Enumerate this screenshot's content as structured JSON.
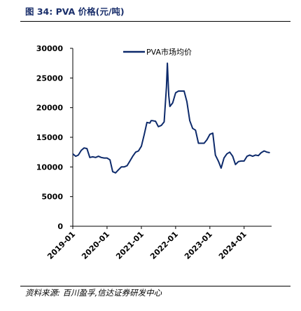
{
  "figure": {
    "title": "图 34:  PVA 价格(元/吨)",
    "source": "资料来源:  百川盈孚,信达证券研发中心"
  },
  "chart_data": {
    "type": "line",
    "title": "",
    "xlabel": "",
    "ylabel": "",
    "ylim": [
      0,
      30000
    ],
    "yticks": [
      0,
      5000,
      10000,
      15000,
      20000,
      25000,
      30000
    ],
    "xticks": [
      "2019-01",
      "2020-01",
      "2021-01",
      "2022-01",
      "2023-01",
      "2024-01"
    ],
    "legend_position": "top-center",
    "grid": false,
    "colors": {
      "line": "#0d2a6b",
      "axis": "#000000"
    },
    "series": [
      {
        "name": "PVA市场均价",
        "x": [
          "2019-01-01",
          "2019-02-01",
          "2019-03-01",
          "2019-04-01",
          "2019-05-01",
          "2019-06-01",
          "2019-07-01",
          "2019-08-01",
          "2019-09-01",
          "2019-10-01",
          "2019-11-01",
          "2019-12-01",
          "2020-01-01",
          "2020-02-01",
          "2020-03-01",
          "2020-04-01",
          "2020-05-01",
          "2020-06-01",
          "2020-07-01",
          "2020-08-01",
          "2020-09-01",
          "2020-10-01",
          "2020-11-01",
          "2020-12-01",
          "2021-01-01",
          "2021-02-01",
          "2021-03-01",
          "2021-04-01",
          "2021-04-15",
          "2021-05-01",
          "2021-06-01",
          "2021-07-01",
          "2021-08-01",
          "2021-09-01",
          "2021-09-25",
          "2021-10-05",
          "2021-10-20",
          "2021-11-01",
          "2021-12-01",
          "2022-01-01",
          "2022-02-01",
          "2022-03-01",
          "2022-04-01",
          "2022-05-01",
          "2022-06-01",
          "2022-07-01",
          "2022-08-01",
          "2022-09-01",
          "2022-10-01",
          "2022-11-01",
          "2022-12-01",
          "2023-01-01",
          "2023-02-01",
          "2023-03-01",
          "2023-04-01",
          "2023-05-01",
          "2023-06-01",
          "2023-07-01",
          "2023-08-01",
          "2023-09-01",
          "2023-10-01",
          "2023-11-01",
          "2023-12-01",
          "2024-01-01",
          "2024-02-01",
          "2024-03-01",
          "2024-04-01",
          "2024-05-01",
          "2024-06-01",
          "2024-07-01",
          "2024-08-01",
          "2024-09-01",
          "2024-10-01"
        ],
        "y": [
          12200,
          11800,
          12000,
          12800,
          13200,
          13100,
          11600,
          11700,
          11600,
          11800,
          11600,
          11500,
          11500,
          11200,
          9200,
          9000,
          9500,
          10000,
          10000,
          10200,
          11000,
          11800,
          12500,
          12700,
          13500,
          15500,
          17500,
          17400,
          17800,
          17800,
          17700,
          16800,
          17000,
          17600,
          23500,
          27500,
          22000,
          20200,
          20800,
          22500,
          22800,
          22800,
          22800,
          21000,
          17800,
          16500,
          16200,
          14000,
          14000,
          14000,
          14600,
          15500,
          15700,
          12000,
          11000,
          9800,
          11500,
          12200,
          12500,
          11800,
          10400,
          10900,
          11000,
          11000,
          11800,
          12000,
          11800,
          12000,
          11900,
          12400,
          12700,
          12500,
          12400
        ]
      }
    ]
  }
}
